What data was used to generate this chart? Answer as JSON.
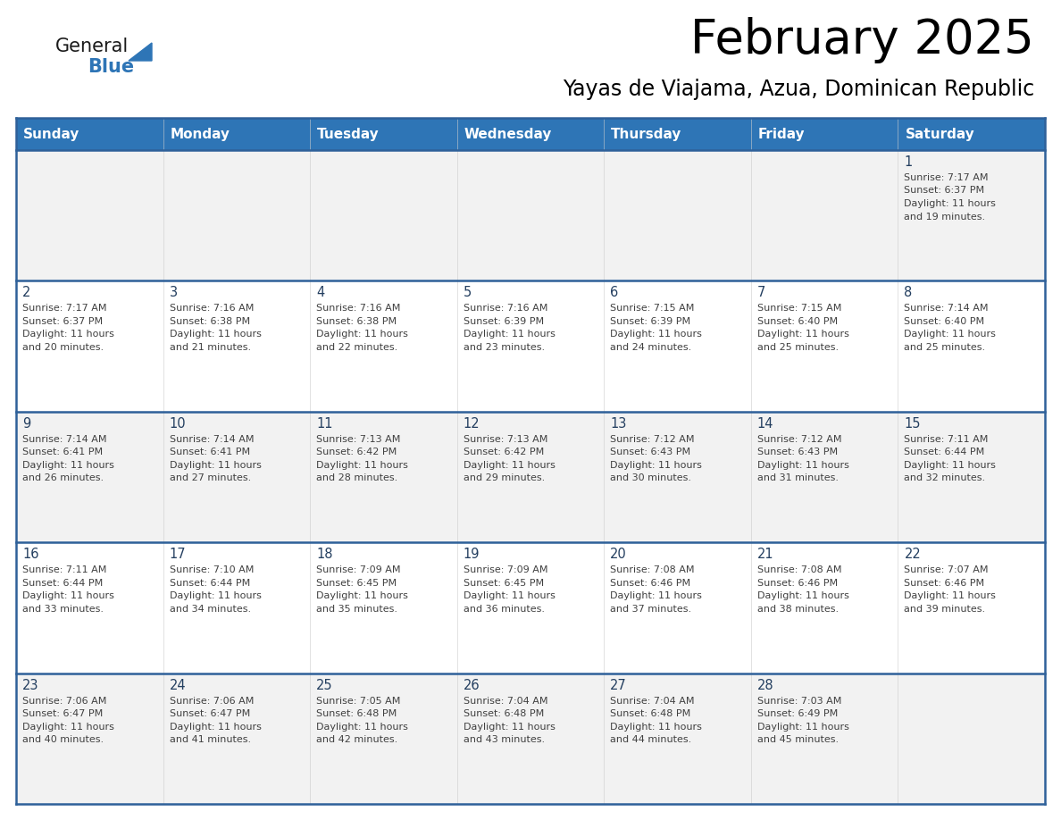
{
  "title": "February 2025",
  "subtitle": "Yayas de Viajama, Azua, Dominican Republic",
  "header_bg": "#2E75B6",
  "header_text_color": "#FFFFFF",
  "day_names": [
    "Sunday",
    "Monday",
    "Tuesday",
    "Wednesday",
    "Thursday",
    "Friday",
    "Saturday"
  ],
  "cell_bg_odd": "#F2F2F2",
  "cell_bg_even": "#FFFFFF",
  "line_color": "#2E6099",
  "title_color": "#000000",
  "subtitle_color": "#000000",
  "day_num_color": "#243F60",
  "cell_text_color": "#404040",
  "logo_general_color": "#1a1a1a",
  "logo_blue_color": "#2E75B6",
  "weeks": [
    [
      null,
      null,
      null,
      null,
      null,
      null,
      1
    ],
    [
      2,
      3,
      4,
      5,
      6,
      7,
      8
    ],
    [
      9,
      10,
      11,
      12,
      13,
      14,
      15
    ],
    [
      16,
      17,
      18,
      19,
      20,
      21,
      22
    ],
    [
      23,
      24,
      25,
      26,
      27,
      28,
      null
    ]
  ],
  "cell_data": {
    "1": {
      "sunrise": "7:17 AM",
      "sunset": "6:37 PM",
      "daylight": "11 hours and 19 minutes."
    },
    "2": {
      "sunrise": "7:17 AM",
      "sunset": "6:37 PM",
      "daylight": "11 hours and 20 minutes."
    },
    "3": {
      "sunrise": "7:16 AM",
      "sunset": "6:38 PM",
      "daylight": "11 hours and 21 minutes."
    },
    "4": {
      "sunrise": "7:16 AM",
      "sunset": "6:38 PM",
      "daylight": "11 hours and 22 minutes."
    },
    "5": {
      "sunrise": "7:16 AM",
      "sunset": "6:39 PM",
      "daylight": "11 hours and 23 minutes."
    },
    "6": {
      "sunrise": "7:15 AM",
      "sunset": "6:39 PM",
      "daylight": "11 hours and 24 minutes."
    },
    "7": {
      "sunrise": "7:15 AM",
      "sunset": "6:40 PM",
      "daylight": "11 hours and 25 minutes."
    },
    "8": {
      "sunrise": "7:14 AM",
      "sunset": "6:40 PM",
      "daylight": "11 hours and 25 minutes."
    },
    "9": {
      "sunrise": "7:14 AM",
      "sunset": "6:41 PM",
      "daylight": "11 hours and 26 minutes."
    },
    "10": {
      "sunrise": "7:14 AM",
      "sunset": "6:41 PM",
      "daylight": "11 hours and 27 minutes."
    },
    "11": {
      "sunrise": "7:13 AM",
      "sunset": "6:42 PM",
      "daylight": "11 hours and 28 minutes."
    },
    "12": {
      "sunrise": "7:13 AM",
      "sunset": "6:42 PM",
      "daylight": "11 hours and 29 minutes."
    },
    "13": {
      "sunrise": "7:12 AM",
      "sunset": "6:43 PM",
      "daylight": "11 hours and 30 minutes."
    },
    "14": {
      "sunrise": "7:12 AM",
      "sunset": "6:43 PM",
      "daylight": "11 hours and 31 minutes."
    },
    "15": {
      "sunrise": "7:11 AM",
      "sunset": "6:44 PM",
      "daylight": "11 hours and 32 minutes."
    },
    "16": {
      "sunrise": "7:11 AM",
      "sunset": "6:44 PM",
      "daylight": "11 hours and 33 minutes."
    },
    "17": {
      "sunrise": "7:10 AM",
      "sunset": "6:44 PM",
      "daylight": "11 hours and 34 minutes."
    },
    "18": {
      "sunrise": "7:09 AM",
      "sunset": "6:45 PM",
      "daylight": "11 hours and 35 minutes."
    },
    "19": {
      "sunrise": "7:09 AM",
      "sunset": "6:45 PM",
      "daylight": "11 hours and 36 minutes."
    },
    "20": {
      "sunrise": "7:08 AM",
      "sunset": "6:46 PM",
      "daylight": "11 hours and 37 minutes."
    },
    "21": {
      "sunrise": "7:08 AM",
      "sunset": "6:46 PM",
      "daylight": "11 hours and 38 minutes."
    },
    "22": {
      "sunrise": "7:07 AM",
      "sunset": "6:46 PM",
      "daylight": "11 hours and 39 minutes."
    },
    "23": {
      "sunrise": "7:06 AM",
      "sunset": "6:47 PM",
      "daylight": "11 hours and 40 minutes."
    },
    "24": {
      "sunrise": "7:06 AM",
      "sunset": "6:47 PM",
      "daylight": "11 hours and 41 minutes."
    },
    "25": {
      "sunrise": "7:05 AM",
      "sunset": "6:48 PM",
      "daylight": "11 hours and 42 minutes."
    },
    "26": {
      "sunrise": "7:04 AM",
      "sunset": "6:48 PM",
      "daylight": "11 hours and 43 minutes."
    },
    "27": {
      "sunrise": "7:04 AM",
      "sunset": "6:48 PM",
      "daylight": "11 hours and 44 minutes."
    },
    "28": {
      "sunrise": "7:03 AM",
      "sunset": "6:49 PM",
      "daylight": "11 hours and 45 minutes."
    }
  }
}
